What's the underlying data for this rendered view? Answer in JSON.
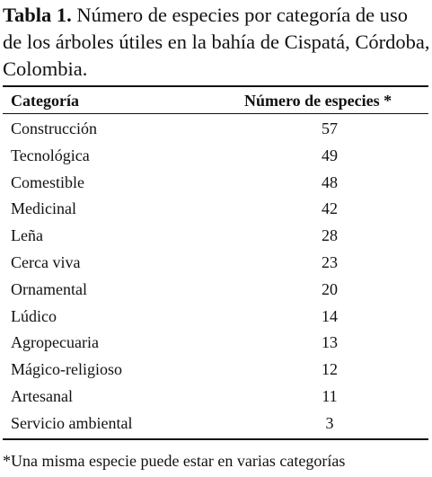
{
  "caption": {
    "label": "Tabla 1.",
    "text": "Número de especies por categoría de uso de los árboles útiles en la bahía de Cispatá, Córdoba, Colombia."
  },
  "table": {
    "header": [
      "Categoría",
      "Número de especies *"
    ],
    "rows": [
      [
        "Construcción",
        57
      ],
      [
        "Tecnológica",
        49
      ],
      [
        "Comestible",
        48
      ],
      [
        "Medicinal",
        42
      ],
      [
        "Leña",
        28
      ],
      [
        "Cerca viva",
        23
      ],
      [
        "Ornamental",
        20
      ],
      [
        "Lúdico",
        14
      ],
      [
        "Agropecuaria",
        13
      ],
      [
        "Mágico-religioso",
        12
      ],
      [
        "Artesanal",
        11
      ],
      [
        "Servicio ambiental",
        3
      ]
    ]
  },
  "footnote": "*Una misma especie puede estar en varias categorías"
}
